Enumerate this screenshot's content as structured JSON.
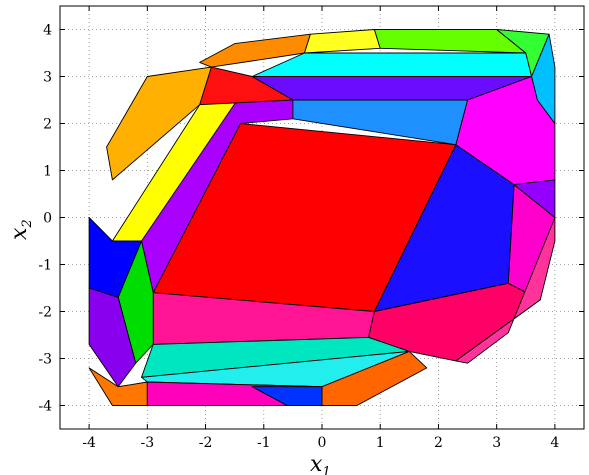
{
  "chart_data": {
    "type": "polytope-partition",
    "xlabel": "x",
    "xlabel_sub": "1",
    "ylabel": "x",
    "ylabel_sub": "2",
    "xlim": [
      -4.5,
      4.5
    ],
    "ylim": [
      -4.5,
      4.5
    ],
    "x_ticks": [
      -4,
      -3,
      -2,
      -1,
      0,
      1,
      2,
      3,
      4
    ],
    "y_ticks": [
      -4,
      -3,
      -2,
      -1,
      0,
      1,
      2,
      3,
      4
    ],
    "x_tick_labels": [
      "-4",
      "-3",
      "-2",
      "-1",
      "0",
      "1",
      "2",
      "3",
      "4"
    ],
    "y_tick_labels": [
      "-4",
      "-3",
      "-2",
      "-1",
      "0",
      "1",
      "2",
      "3",
      "4"
    ],
    "grid": "dotted",
    "regions": [
      {
        "color": "#FF0000",
        "vertices": [
          [
            -1.4,
            2
          ],
          [
            2.3,
            1.55
          ],
          [
            0.9,
            -2.0
          ],
          [
            -2.9,
            -1.6
          ]
        ]
      },
      {
        "color": "#AA00FF",
        "vertices": [
          [
            -1.4,
            2
          ],
          [
            -0.5,
            2.1
          ],
          [
            -0.5,
            3.2
          ],
          [
            -2.1,
            2.4
          ],
          [
            -3.1,
            -0.5
          ],
          [
            -2.9,
            -1.6
          ]
        ]
      },
      {
        "color": "#1A10FF",
        "vertices": [
          [
            2.3,
            1.55
          ],
          [
            3.3,
            0.7
          ],
          [
            3.2,
            -1.4
          ],
          [
            0.9,
            -2.0
          ]
        ]
      },
      {
        "color": "#FF1493",
        "vertices": [
          [
            -2.9,
            -1.6
          ],
          [
            0.9,
            -2.0
          ],
          [
            0.8,
            -2.55
          ],
          [
            -2.9,
            -2.7
          ]
        ]
      },
      {
        "color": "#FF00CC",
        "vertices": [
          [
            3.3,
            0.7
          ],
          [
            4.0,
            0.0
          ],
          [
            3.75,
            -1.75
          ],
          [
            3.2,
            -1.4
          ]
        ]
      },
      {
        "color": "#FF0066",
        "vertices": [
          [
            0.9,
            -2.0
          ],
          [
            3.2,
            -1.4
          ],
          [
            3.75,
            -1.75
          ],
          [
            2.3,
            -3.05
          ],
          [
            1.5,
            -2.85
          ],
          [
            0.8,
            -2.55
          ]
        ]
      },
      {
        "color": "#FF3399",
        "vertices": [
          [
            2.3,
            -3.05
          ],
          [
            3.75,
            -1.75
          ],
          [
            4.0,
            -0.5
          ],
          [
            4.0,
            0.0
          ],
          [
            3.2,
            -2.45
          ],
          [
            2.5,
            -3.1
          ]
        ]
      },
      {
        "color": "#1E90FF",
        "vertices": [
          [
            -0.5,
            2.1
          ],
          [
            2.3,
            1.55
          ],
          [
            2.5,
            2.5
          ],
          [
            -0.5,
            2.5
          ]
        ]
      },
      {
        "color": "#6A0DFF",
        "vertices": [
          [
            -0.5,
            2.5
          ],
          [
            2.5,
            2.5
          ],
          [
            3.6,
            3.0
          ],
          [
            -1.2,
            3.0
          ]
        ]
      },
      {
        "color": "#00FFFF",
        "vertices": [
          [
            -1.2,
            3.0
          ],
          [
            3.6,
            3.0
          ],
          [
            3.5,
            3.5
          ],
          [
            -0.3,
            3.5
          ]
        ]
      },
      {
        "color": "#FF00FF",
        "vertices": [
          [
            2.5,
            2.5
          ],
          [
            3.6,
            3.0
          ],
          [
            3.7,
            2.5
          ],
          [
            4.0,
            2.0
          ],
          [
            4.0,
            0.8
          ],
          [
            3.3,
            0.7
          ],
          [
            2.3,
            1.55
          ]
        ]
      },
      {
        "color": "#FFB000",
        "vertices": [
          [
            -3.6,
            0.8
          ],
          [
            -2.1,
            2.4
          ],
          [
            -1.9,
            3.2
          ],
          [
            -3.0,
            3.0
          ],
          [
            -3.7,
            1.5
          ]
        ]
      },
      {
        "color": "#FFFF00",
        "vertices": [
          [
            -3.6,
            -0.5
          ],
          [
            -2.1,
            2.4
          ],
          [
            -1.4,
            2.6
          ],
          [
            -3.1,
            -0.5
          ]
        ]
      },
      {
        "color": "#FF8C00",
        "vertices": [
          [
            -1.9,
            3.2
          ],
          [
            -0.3,
            3.5
          ],
          [
            -0.2,
            3.9
          ],
          [
            -1.5,
            3.7
          ],
          [
            -2.1,
            3.3
          ]
        ]
      },
      {
        "color": "#FF1010",
        "vertices": [
          [
            -2.1,
            2.4
          ],
          [
            -0.5,
            2.5
          ],
          [
            -1.2,
            3.0
          ],
          [
            -1.9,
            3.2
          ]
        ]
      },
      {
        "color": "#FFFF20",
        "vertices": [
          [
            -0.3,
            3.5
          ],
          [
            1.0,
            3.6
          ],
          [
            0.9,
            4.0
          ],
          [
            -0.2,
            3.9
          ]
        ]
      },
      {
        "color": "#66FF00",
        "vertices": [
          [
            1.0,
            3.6
          ],
          [
            3.5,
            3.5
          ],
          [
            3.0,
            4.0
          ],
          [
            0.9,
            4.0
          ]
        ]
      },
      {
        "color": "#33FF33",
        "vertices": [
          [
            3.0,
            4.0
          ],
          [
            3.5,
            3.5
          ],
          [
            3.6,
            3.0
          ],
          [
            3.9,
            3.9
          ]
        ]
      },
      {
        "color": "#00BFFF",
        "vertices": [
          [
            3.6,
            3.0
          ],
          [
            3.7,
            2.5
          ],
          [
            4.0,
            2.0
          ],
          [
            4.0,
            3.2
          ],
          [
            3.9,
            3.9
          ]
        ]
      },
      {
        "color": "#9400FF",
        "vertices": [
          [
            3.3,
            0.7
          ],
          [
            4.0,
            0.8
          ],
          [
            4.0,
            0.0
          ]
        ]
      },
      {
        "color": "#0000FF",
        "vertices": [
          [
            -4.0,
            0.0
          ],
          [
            -3.6,
            -0.5
          ],
          [
            -3.1,
            -0.5
          ],
          [
            -3.5,
            -1.7
          ],
          [
            -4.0,
            -1.5
          ]
        ]
      },
      {
        "color": "#00DD00",
        "vertices": [
          [
            -3.5,
            -1.7
          ],
          [
            -3.1,
            -0.5
          ],
          [
            -2.9,
            -1.6
          ],
          [
            -2.9,
            -2.7
          ],
          [
            -3.2,
            -3.1
          ]
        ]
      },
      {
        "color": "#8800EE",
        "vertices": [
          [
            -4.0,
            -1.5
          ],
          [
            -3.5,
            -1.7
          ],
          [
            -3.2,
            -3.1
          ],
          [
            -3.5,
            -3.6
          ],
          [
            -4.0,
            -2.7
          ]
        ]
      },
      {
        "color": "#00E6C0",
        "vertices": [
          [
            -2.9,
            -2.7
          ],
          [
            0.8,
            -2.55
          ],
          [
            1.5,
            -2.85
          ],
          [
            -3.1,
            -3.4
          ]
        ]
      },
      {
        "color": "#22EEEE",
        "vertices": [
          [
            -3.1,
            -3.4
          ],
          [
            1.5,
            -2.85
          ],
          [
            0.0,
            -3.6
          ],
          [
            -3.0,
            -3.5
          ]
        ]
      },
      {
        "color": "#FF7700",
        "vertices": [
          [
            -3.5,
            -3.6
          ],
          [
            -3.0,
            -3.5
          ],
          [
            -3.0,
            -4.0
          ],
          [
            -3.6,
            -4.0
          ],
          [
            -4.0,
            -3.2
          ]
        ]
      },
      {
        "color": "#FF00BB",
        "vertices": [
          [
            -3.0,
            -3.5
          ],
          [
            0.0,
            -3.6
          ],
          [
            0.0,
            -4.0
          ],
          [
            -3.0,
            -4.0
          ]
        ]
      },
      {
        "color": "#FF6600",
        "vertices": [
          [
            0.0,
            -3.6
          ],
          [
            1.5,
            -2.85
          ],
          [
            1.8,
            -3.2
          ],
          [
            0.6,
            -4.0
          ],
          [
            0.0,
            -4.0
          ]
        ]
      },
      {
        "color": "#0033FF",
        "vertices": [
          [
            -1.2,
            -3.6
          ],
          [
            -0.6,
            -4.0
          ],
          [
            0.0,
            -4.0
          ],
          [
            0.0,
            -3.6
          ]
        ]
      }
    ]
  }
}
